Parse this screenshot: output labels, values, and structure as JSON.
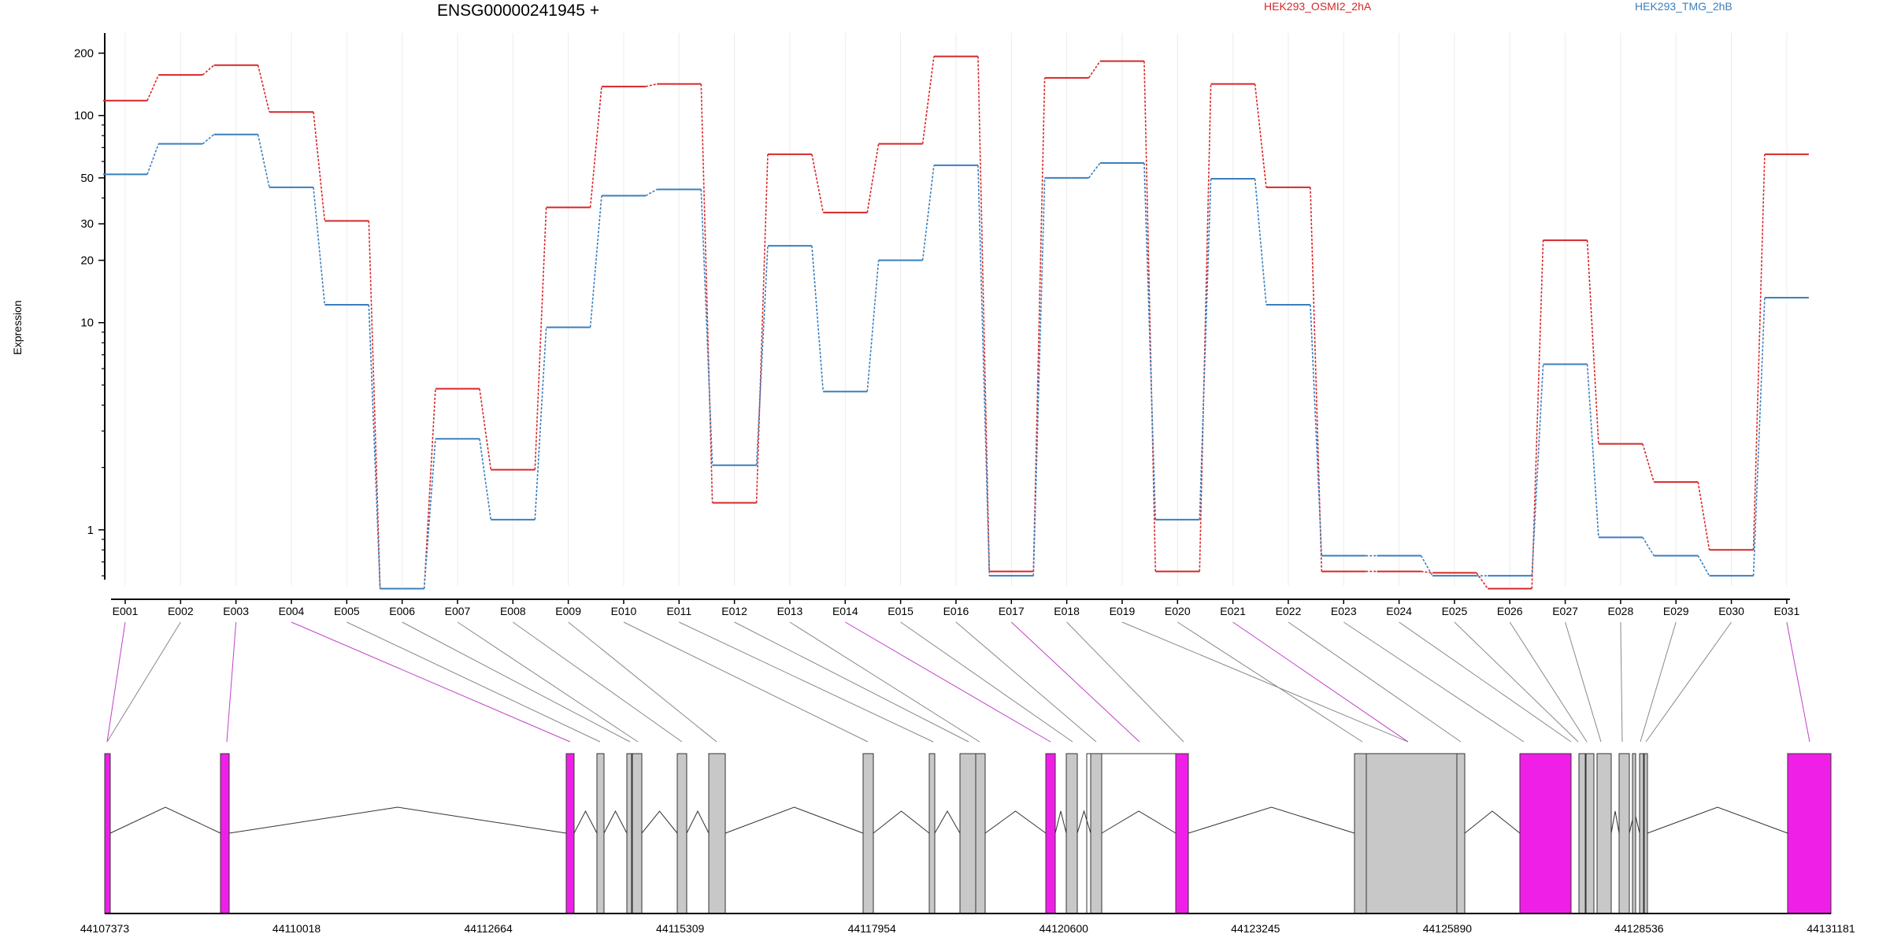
{
  "title": "ENSG00000241945 +",
  "ylabel": "Expression",
  "legend": {
    "a": "HEK293_OSMI2_2hA",
    "b": "HEK293_TMG_2hB"
  },
  "colors": {
    "series_a": "#d62728",
    "series_b": "#3a7fbf",
    "exon_highlight": "#f01fe8",
    "exon_normal": "#c8c8c8",
    "connector_highlight": "#c040c8",
    "connector_normal": "#888888"
  },
  "chart_data": {
    "type": "line",
    "y_scale": "log",
    "ylim": [
      0.5,
      250
    ],
    "yticks": [
      1,
      10,
      20,
      30,
      50,
      100,
      200
    ],
    "categories": [
      "E001",
      "E002",
      "E003",
      "E004",
      "E005",
      "E006",
      "E007",
      "E008",
      "E009",
      "E010",
      "E011",
      "E012",
      "E013",
      "E014",
      "E015",
      "E016",
      "E017",
      "E018",
      "E019",
      "E020",
      "E021",
      "E022",
      "E023",
      "E024",
      "E025",
      "E026",
      "E027",
      "E028",
      "E029",
      "E030",
      "E031"
    ],
    "series": [
      {
        "name": "HEK293_OSMI2_2hA",
        "values": [
          118,
          157,
          175,
          104,
          31,
          0.52,
          4.8,
          1.95,
          36,
          138,
          142,
          1.35,
          65,
          34,
          73,
          193,
          0.63,
          152,
          183,
          0.63,
          142,
          45,
          0.63,
          0.63,
          0.62,
          0.52,
          25,
          2.6,
          1.7,
          0.8,
          65
        ]
      },
      {
        "name": "HEK293_TMG_2hB",
        "values": [
          52,
          73,
          81,
          45,
          12.2,
          0.52,
          2.75,
          1.12,
          9.5,
          41,
          44,
          2.05,
          23.5,
          4.65,
          20,
          57.5,
          0.6,
          50,
          59,
          1.12,
          49.5,
          12.2,
          0.75,
          0.75,
          0.6,
          0.6,
          6.3,
          0.92,
          0.75,
          0.6,
          13.2
        ]
      }
    ],
    "exon_highlight": [
      true,
      false,
      true,
      true,
      false,
      false,
      false,
      false,
      false,
      false,
      false,
      false,
      false,
      true,
      false,
      false,
      true,
      false,
      false,
      false,
      true,
      false,
      false,
      false,
      false,
      false,
      false,
      false,
      false,
      false,
      true
    ],
    "genome_axis_ticks": [
      "44107373",
      "44110018",
      "44112664",
      "44115309",
      "44117954",
      "44120600",
      "44123245",
      "44125890",
      "44128536",
      "44131181"
    ]
  }
}
